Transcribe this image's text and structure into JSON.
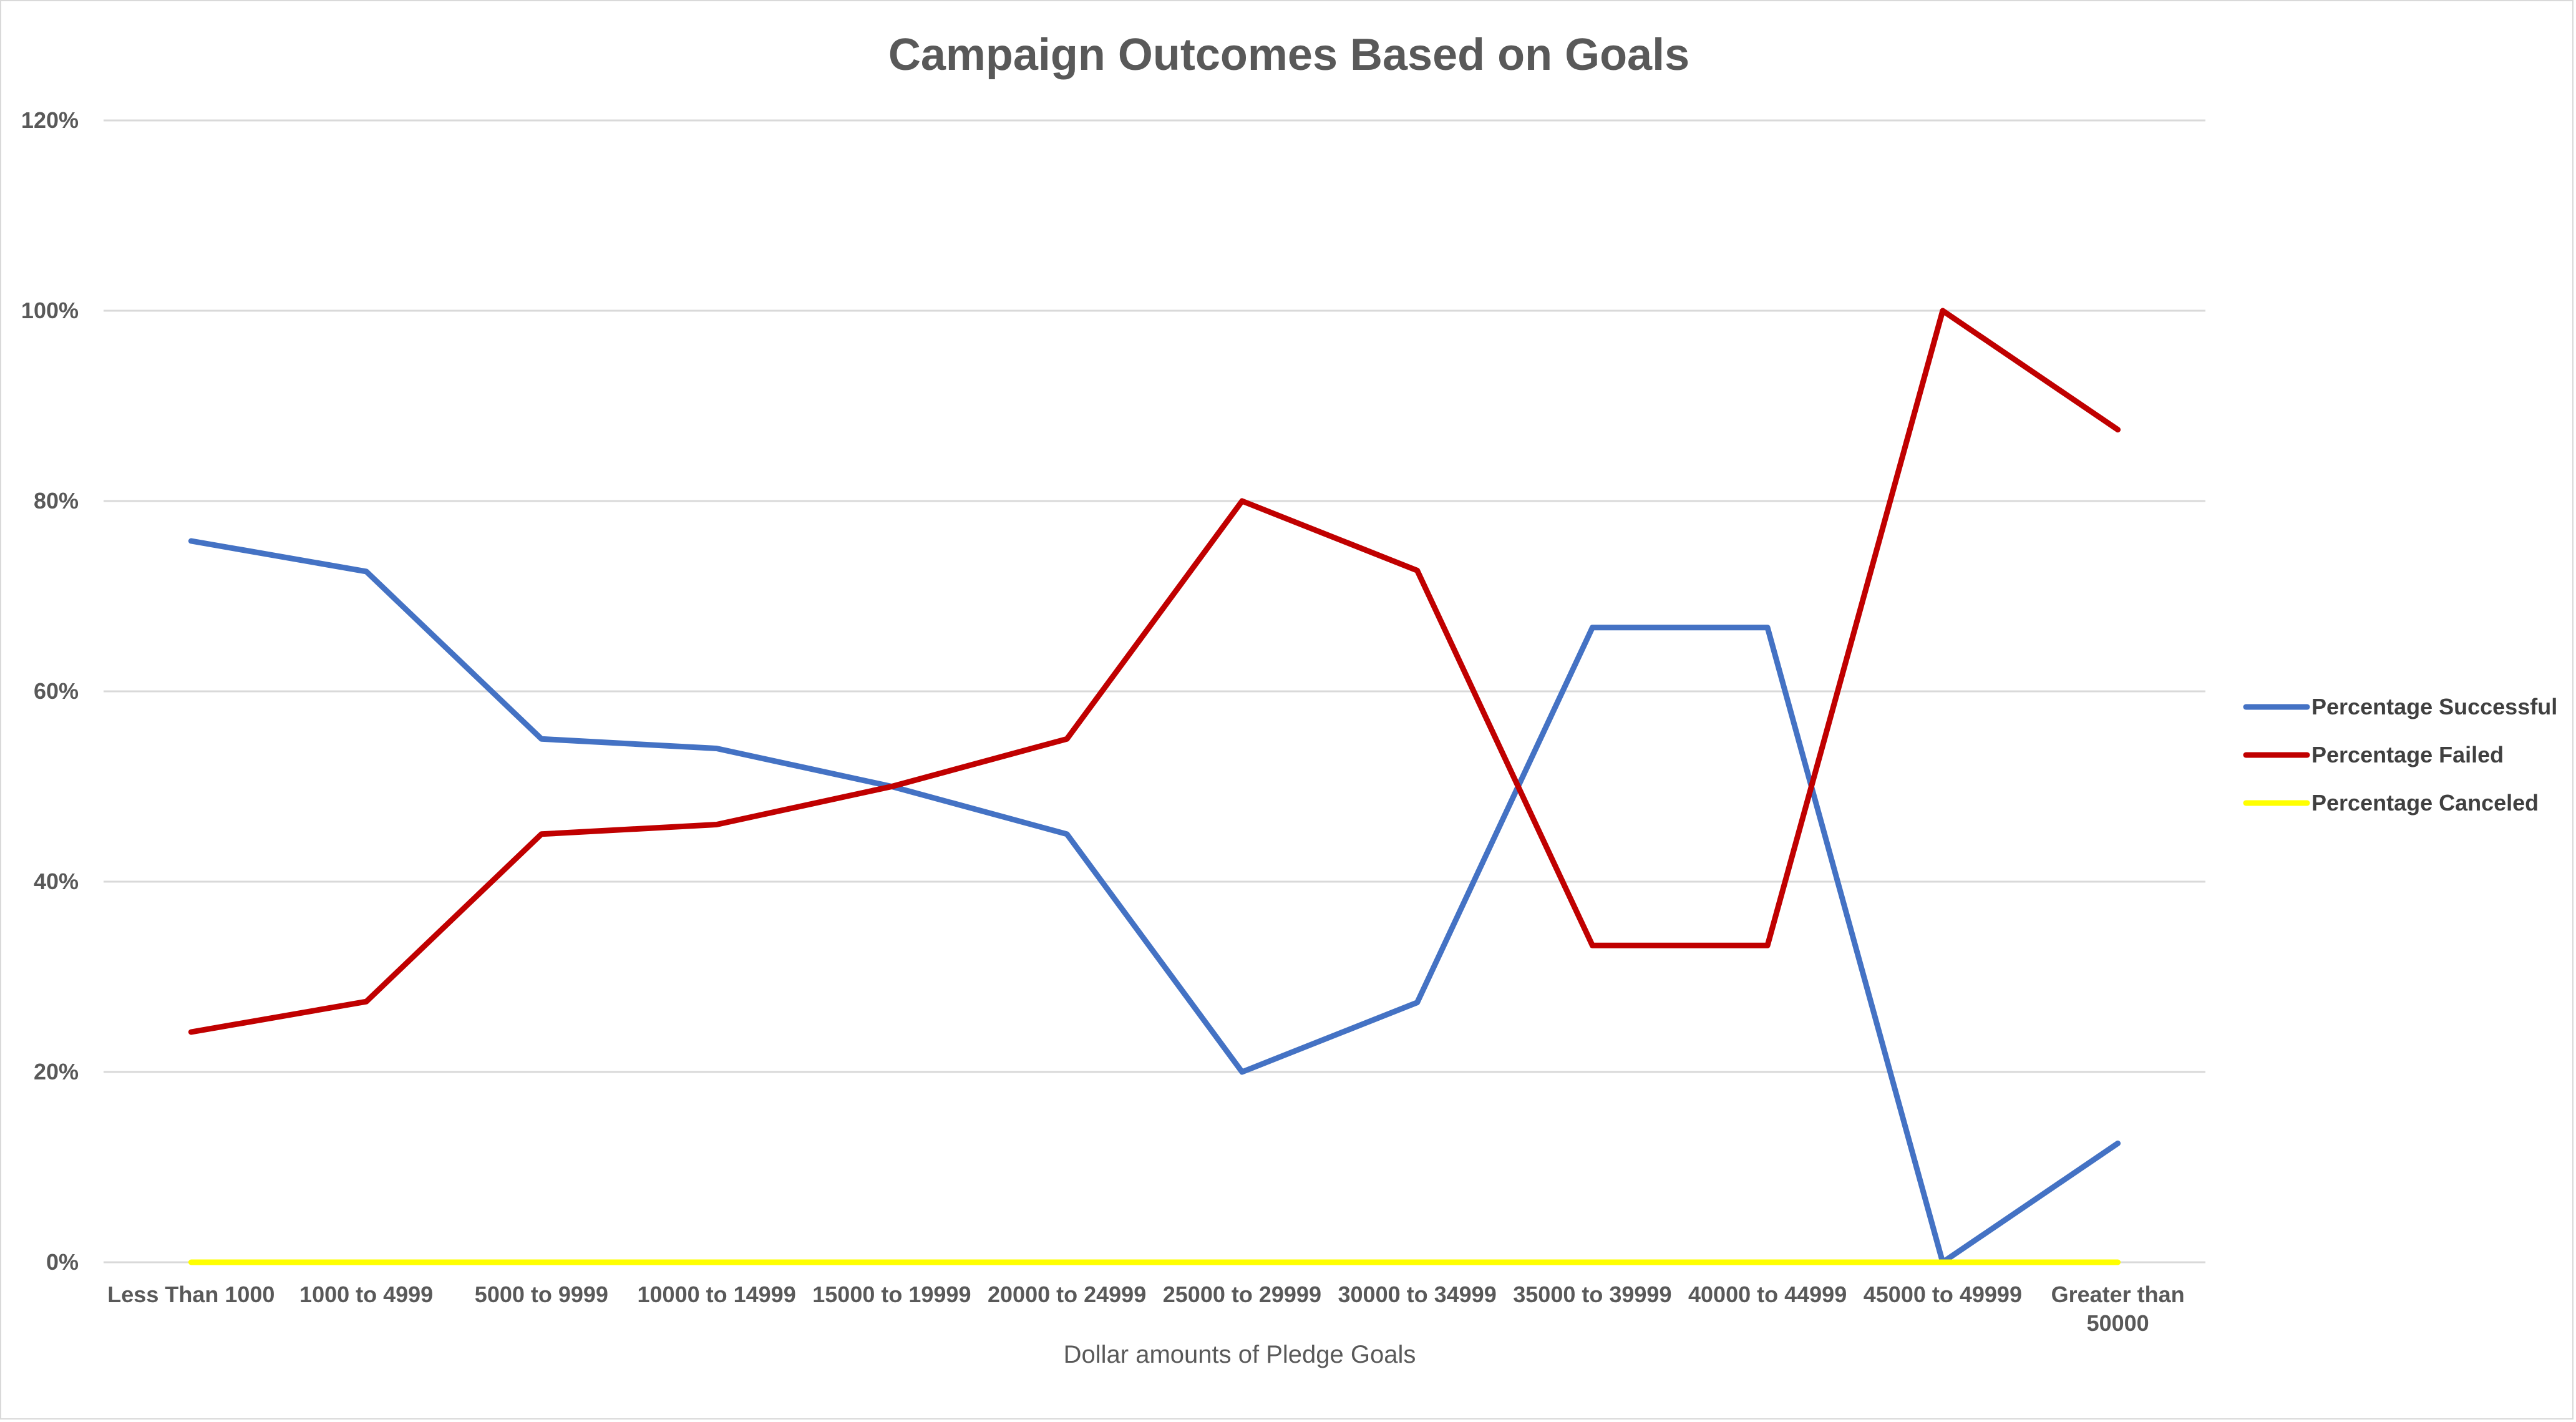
{
  "chart_data": {
    "type": "line",
    "title": "Campaign Outcomes Based on Goals",
    "xlabel": "Dollar amounts of Pledge Goals",
    "ylabel": "",
    "ylim": [
      0,
      1.2
    ],
    "y_ticks": [
      0,
      0.2,
      0.4,
      0.6,
      0.8,
      1.0,
      1.2
    ],
    "y_tick_labels": [
      "0%",
      "20%",
      "40%",
      "60%",
      "80%",
      "100%",
      "120%"
    ],
    "grid": true,
    "legend_position": "right",
    "categories": [
      "Less Than 1000",
      "1000 to 4999",
      "5000 to 9999",
      "10000 to 14999",
      "15000 to 19999",
      "20000 to 24999",
      "25000 to 29999",
      "30000 to 34999",
      "35000 to 39999",
      "40000 to 44999",
      "45000 to 49999",
      "Greater than 50000"
    ],
    "category_label_lines": [
      [
        "Less Than 1000"
      ],
      [
        "1000 to 4999"
      ],
      [
        "5000 to 9999"
      ],
      [
        "10000 to 14999"
      ],
      [
        "15000 to 19999"
      ],
      [
        "20000 to 24999"
      ],
      [
        "25000 to 29999"
      ],
      [
        "30000 to 34999"
      ],
      [
        "35000 to 39999"
      ],
      [
        "40000 to 44999"
      ],
      [
        "45000 to 49999"
      ],
      [
        "Greater than",
        "50000"
      ]
    ],
    "series": [
      {
        "name": "Percentage Successful",
        "color": "#4472c4",
        "values": [
          0.758,
          0.726,
          0.55,
          0.54,
          0.5,
          0.45,
          0.2,
          0.273,
          0.667,
          0.667,
          0.0,
          0.125
        ]
      },
      {
        "name": "Percentage Failed",
        "color": "#c00000",
        "values": [
          0.242,
          0.274,
          0.45,
          0.46,
          0.5,
          0.55,
          0.8,
          0.727,
          0.333,
          0.333,
          1.0,
          0.875
        ]
      },
      {
        "name": "Percentage Canceled",
        "color": "#ffff00",
        "values": [
          0,
          0,
          0,
          0,
          0,
          0,
          0,
          0,
          0,
          0,
          0,
          0
        ]
      }
    ]
  }
}
